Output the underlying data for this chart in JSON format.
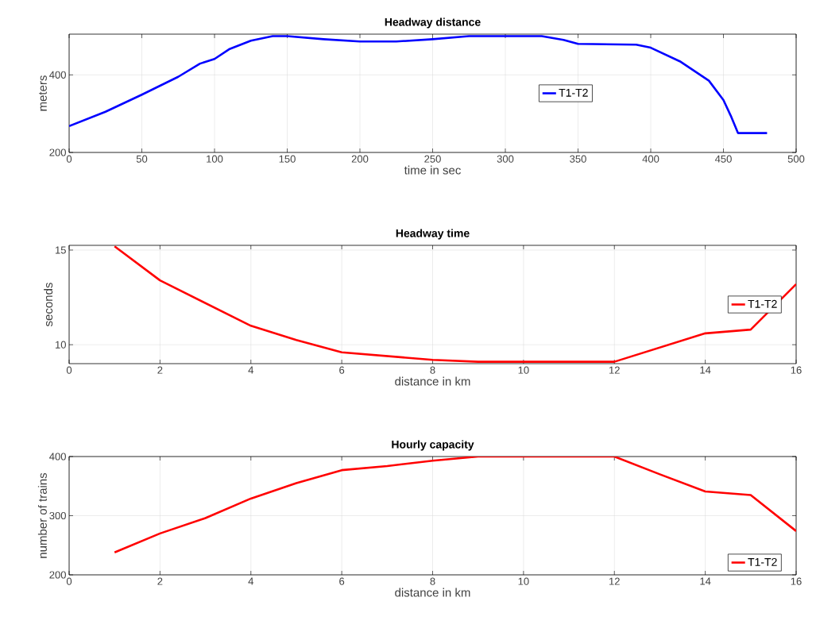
{
  "chart_data": [
    {
      "type": "line",
      "title": "Headway distance",
      "xlabel": "time in sec",
      "ylabel": "meters",
      "x": [
        0,
        25,
        50,
        75,
        90,
        100,
        110,
        125,
        140,
        150,
        175,
        200,
        225,
        250,
        275,
        325,
        340,
        350,
        390,
        400,
        420,
        440,
        450,
        455,
        460,
        480
      ],
      "series": [
        {
          "name": "T1-T2",
          "color": "#0000ff",
          "values": [
            268,
            305,
            349,
            395,
            429,
            441,
            466,
            488,
            500,
            500,
            492,
            486,
            486,
            492,
            500,
            500,
            490,
            480,
            478,
            470,
            435,
            385,
            335,
            295,
            250,
            250
          ]
        }
      ],
      "xlim": [
        0,
        500
      ],
      "ylim": [
        200,
        505
      ],
      "xticks": [
        0,
        50,
        100,
        150,
        200,
        250,
        300,
        350,
        400,
        450,
        500
      ],
      "yticks": [
        200,
        400
      ],
      "grid": true,
      "legend": "center"
    },
    {
      "type": "line",
      "title": "Headway time",
      "xlabel": "distance in km",
      "ylabel": "seconds",
      "x": [
        1,
        2,
        4,
        5,
        6,
        8,
        9,
        12,
        14,
        15,
        16
      ],
      "series": [
        {
          "name": "T1-T2",
          "color": "#ff0000",
          "values": [
            15.2,
            13.4,
            11.0,
            10.25,
            9.6,
            9.2,
            9.1,
            9.1,
            10.6,
            10.8,
            13.2
          ]
        }
      ],
      "xlim": [
        0,
        16
      ],
      "ylim": [
        9,
        15.25
      ],
      "xticks": [
        0,
        2,
        4,
        6,
        8,
        10,
        12,
        14,
        16
      ],
      "yticks": [
        10,
        15
      ],
      "grid": true,
      "legend": "right"
    },
    {
      "type": "line",
      "title": "Hourly capacity",
      "xlabel": "distance in km",
      "ylabel": "number of trains",
      "x": [
        1,
        2,
        3,
        4,
        5,
        6,
        7,
        8,
        9,
        12,
        13,
        14,
        15,
        16
      ],
      "series": [
        {
          "name": "T1-T2",
          "color": "#ff0000",
          "values": [
            238,
            270,
            296,
            329,
            355,
            377,
            384,
            393,
            400,
            400,
            370,
            341,
            335,
            274
          ]
        }
      ],
      "xlim": [
        0,
        16
      ],
      "ylim": [
        200,
        400
      ],
      "xticks": [
        0,
        2,
        4,
        6,
        8,
        10,
        12,
        14,
        16
      ],
      "yticks": [
        200,
        300,
        400
      ],
      "grid": true,
      "legend": "bottom right"
    }
  ]
}
